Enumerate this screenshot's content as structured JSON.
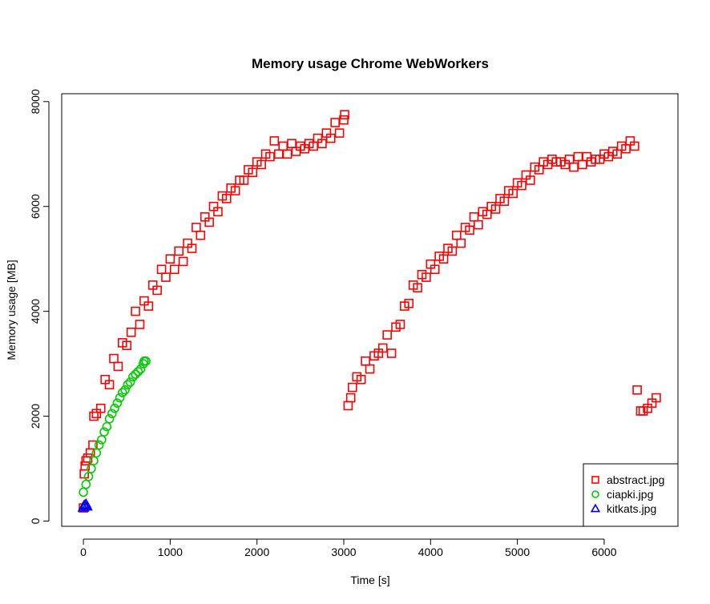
{
  "chart_data": {
    "type": "scatter",
    "title": "Memory usage Chrome WebWorkers",
    "xlabel": "Time [s]",
    "ylabel": "Memory usage [MB]",
    "xlim": [
      -250,
      6850
    ],
    "ylim": [
      -100,
      8150
    ],
    "x_ticks": [
      0,
      1000,
      2000,
      3000,
      4000,
      5000,
      6000
    ],
    "y_ticks": [
      0,
      2000,
      4000,
      6000,
      8000
    ],
    "grid": false,
    "legend_position": "bottom-right",
    "series": [
      {
        "name": "abstract.jpg",
        "color": "#ff0000",
        "marker": "square",
        "points": [
          [
            0,
            250
          ],
          [
            10,
            900
          ],
          [
            20,
            1050
          ],
          [
            30,
            1150
          ],
          [
            50,
            1200
          ],
          [
            80,
            1300
          ],
          [
            110,
            1450
          ],
          [
            120,
            2000
          ],
          [
            150,
            2050
          ],
          [
            200,
            2150
          ],
          [
            250,
            2700
          ],
          [
            300,
            2600
          ],
          [
            350,
            3100
          ],
          [
            400,
            2950
          ],
          [
            450,
            3400
          ],
          [
            500,
            3350
          ],
          [
            550,
            3600
          ],
          [
            600,
            4000
          ],
          [
            650,
            3750
          ],
          [
            700,
            4200
          ],
          [
            750,
            4100
          ],
          [
            800,
            4500
          ],
          [
            850,
            4400
          ],
          [
            900,
            4800
          ],
          [
            950,
            4650
          ],
          [
            1000,
            5000
          ],
          [
            1050,
            4800
          ],
          [
            1100,
            5150
          ],
          [
            1150,
            4950
          ],
          [
            1200,
            5300
          ],
          [
            1250,
            5200
          ],
          [
            1300,
            5600
          ],
          [
            1350,
            5450
          ],
          [
            1400,
            5800
          ],
          [
            1450,
            5700
          ],
          [
            1500,
            6000
          ],
          [
            1550,
            5900
          ],
          [
            1600,
            6200
          ],
          [
            1650,
            6150
          ],
          [
            1700,
            6350
          ],
          [
            1750,
            6300
          ],
          [
            1800,
            6500
          ],
          [
            1850,
            6500
          ],
          [
            1900,
            6700
          ],
          [
            1950,
            6650
          ],
          [
            2000,
            6850
          ],
          [
            2050,
            6800
          ],
          [
            2100,
            7000
          ],
          [
            2150,
            6950
          ],
          [
            2200,
            7250
          ],
          [
            2250,
            7000
          ],
          [
            2300,
            7150
          ],
          [
            2350,
            7000
          ],
          [
            2400,
            7200
          ],
          [
            2450,
            7050
          ],
          [
            2500,
            7150
          ],
          [
            2550,
            7100
          ],
          [
            2600,
            7200
          ],
          [
            2650,
            7150
          ],
          [
            2700,
            7300
          ],
          [
            2750,
            7200
          ],
          [
            2800,
            7400
          ],
          [
            2850,
            7300
          ],
          [
            2900,
            7600
          ],
          [
            2950,
            7400
          ],
          [
            3000,
            7650
          ],
          [
            3010,
            7750
          ],
          [
            3050,
            2200
          ],
          [
            3080,
            2350
          ],
          [
            3100,
            2550
          ],
          [
            3150,
            2750
          ],
          [
            3200,
            2700
          ],
          [
            3250,
            3050
          ],
          [
            3300,
            2900
          ],
          [
            3350,
            3150
          ],
          [
            3400,
            3200
          ],
          [
            3450,
            3300
          ],
          [
            3500,
            3550
          ],
          [
            3550,
            3200
          ],
          [
            3600,
            3700
          ],
          [
            3650,
            3750
          ],
          [
            3700,
            4100
          ],
          [
            3750,
            4150
          ],
          [
            3800,
            4500
          ],
          [
            3850,
            4450
          ],
          [
            3900,
            4700
          ],
          [
            3950,
            4650
          ],
          [
            4000,
            4900
          ],
          [
            4050,
            4800
          ],
          [
            4100,
            5050
          ],
          [
            4150,
            5000
          ],
          [
            4200,
            5200
          ],
          [
            4250,
            5150
          ],
          [
            4300,
            5450
          ],
          [
            4350,
            5300
          ],
          [
            4400,
            5600
          ],
          [
            4450,
            5550
          ],
          [
            4500,
            5800
          ],
          [
            4550,
            5650
          ],
          [
            4600,
            5900
          ],
          [
            4650,
            5850
          ],
          [
            4700,
            6000
          ],
          [
            4750,
            5950
          ],
          [
            4800,
            6150
          ],
          [
            4850,
            6100
          ],
          [
            4900,
            6300
          ],
          [
            4950,
            6250
          ],
          [
            5000,
            6450
          ],
          [
            5050,
            6400
          ],
          [
            5100,
            6600
          ],
          [
            5150,
            6500
          ],
          [
            5200,
            6750
          ],
          [
            5250,
            6700
          ],
          [
            5300,
            6850
          ],
          [
            5350,
            6800
          ],
          [
            5400,
            6900
          ],
          [
            5450,
            6850
          ],
          [
            5500,
            6850
          ],
          [
            5550,
            6800
          ],
          [
            5600,
            6900
          ],
          [
            5650,
            6750
          ],
          [
            5700,
            6950
          ],
          [
            5750,
            6800
          ],
          [
            5800,
            6950
          ],
          [
            5850,
            6850
          ],
          [
            5900,
            6900
          ],
          [
            5950,
            6900
          ],
          [
            6000,
            7000
          ],
          [
            6050,
            6950
          ],
          [
            6100,
            7050
          ],
          [
            6150,
            7000
          ],
          [
            6200,
            7150
          ],
          [
            6250,
            7100
          ],
          [
            6300,
            7250
          ],
          [
            6350,
            7150
          ],
          [
            6380,
            2500
          ],
          [
            6420,
            2100
          ],
          [
            6450,
            2100
          ],
          [
            6500,
            2150
          ],
          [
            6550,
            2250
          ],
          [
            6600,
            2350
          ]
        ]
      },
      {
        "name": "ciapki.jpg",
        "color": "#00cd00",
        "marker": "circle",
        "points": [
          [
            0,
            550
          ],
          [
            30,
            700
          ],
          [
            60,
            850
          ],
          [
            90,
            1000
          ],
          [
            120,
            1150
          ],
          [
            150,
            1300
          ],
          [
            180,
            1450
          ],
          [
            210,
            1550
          ],
          [
            240,
            1700
          ],
          [
            270,
            1800
          ],
          [
            300,
            1950
          ],
          [
            330,
            2050
          ],
          [
            360,
            2150
          ],
          [
            390,
            2250
          ],
          [
            420,
            2350
          ],
          [
            450,
            2450
          ],
          [
            480,
            2500
          ],
          [
            510,
            2600
          ],
          [
            540,
            2650
          ],
          [
            570,
            2750
          ],
          [
            600,
            2800
          ],
          [
            630,
            2850
          ],
          [
            660,
            2900
          ],
          [
            690,
            3000
          ],
          [
            700,
            3050
          ],
          [
            720,
            3050
          ]
        ]
      },
      {
        "name": "kitkats.jpg",
        "color": "#0000ff",
        "marker": "triangle",
        "points": [
          [
            0,
            260
          ],
          [
            10,
            300
          ],
          [
            20,
            290
          ],
          [
            30,
            320
          ],
          [
            40,
            280
          ]
        ]
      }
    ]
  }
}
